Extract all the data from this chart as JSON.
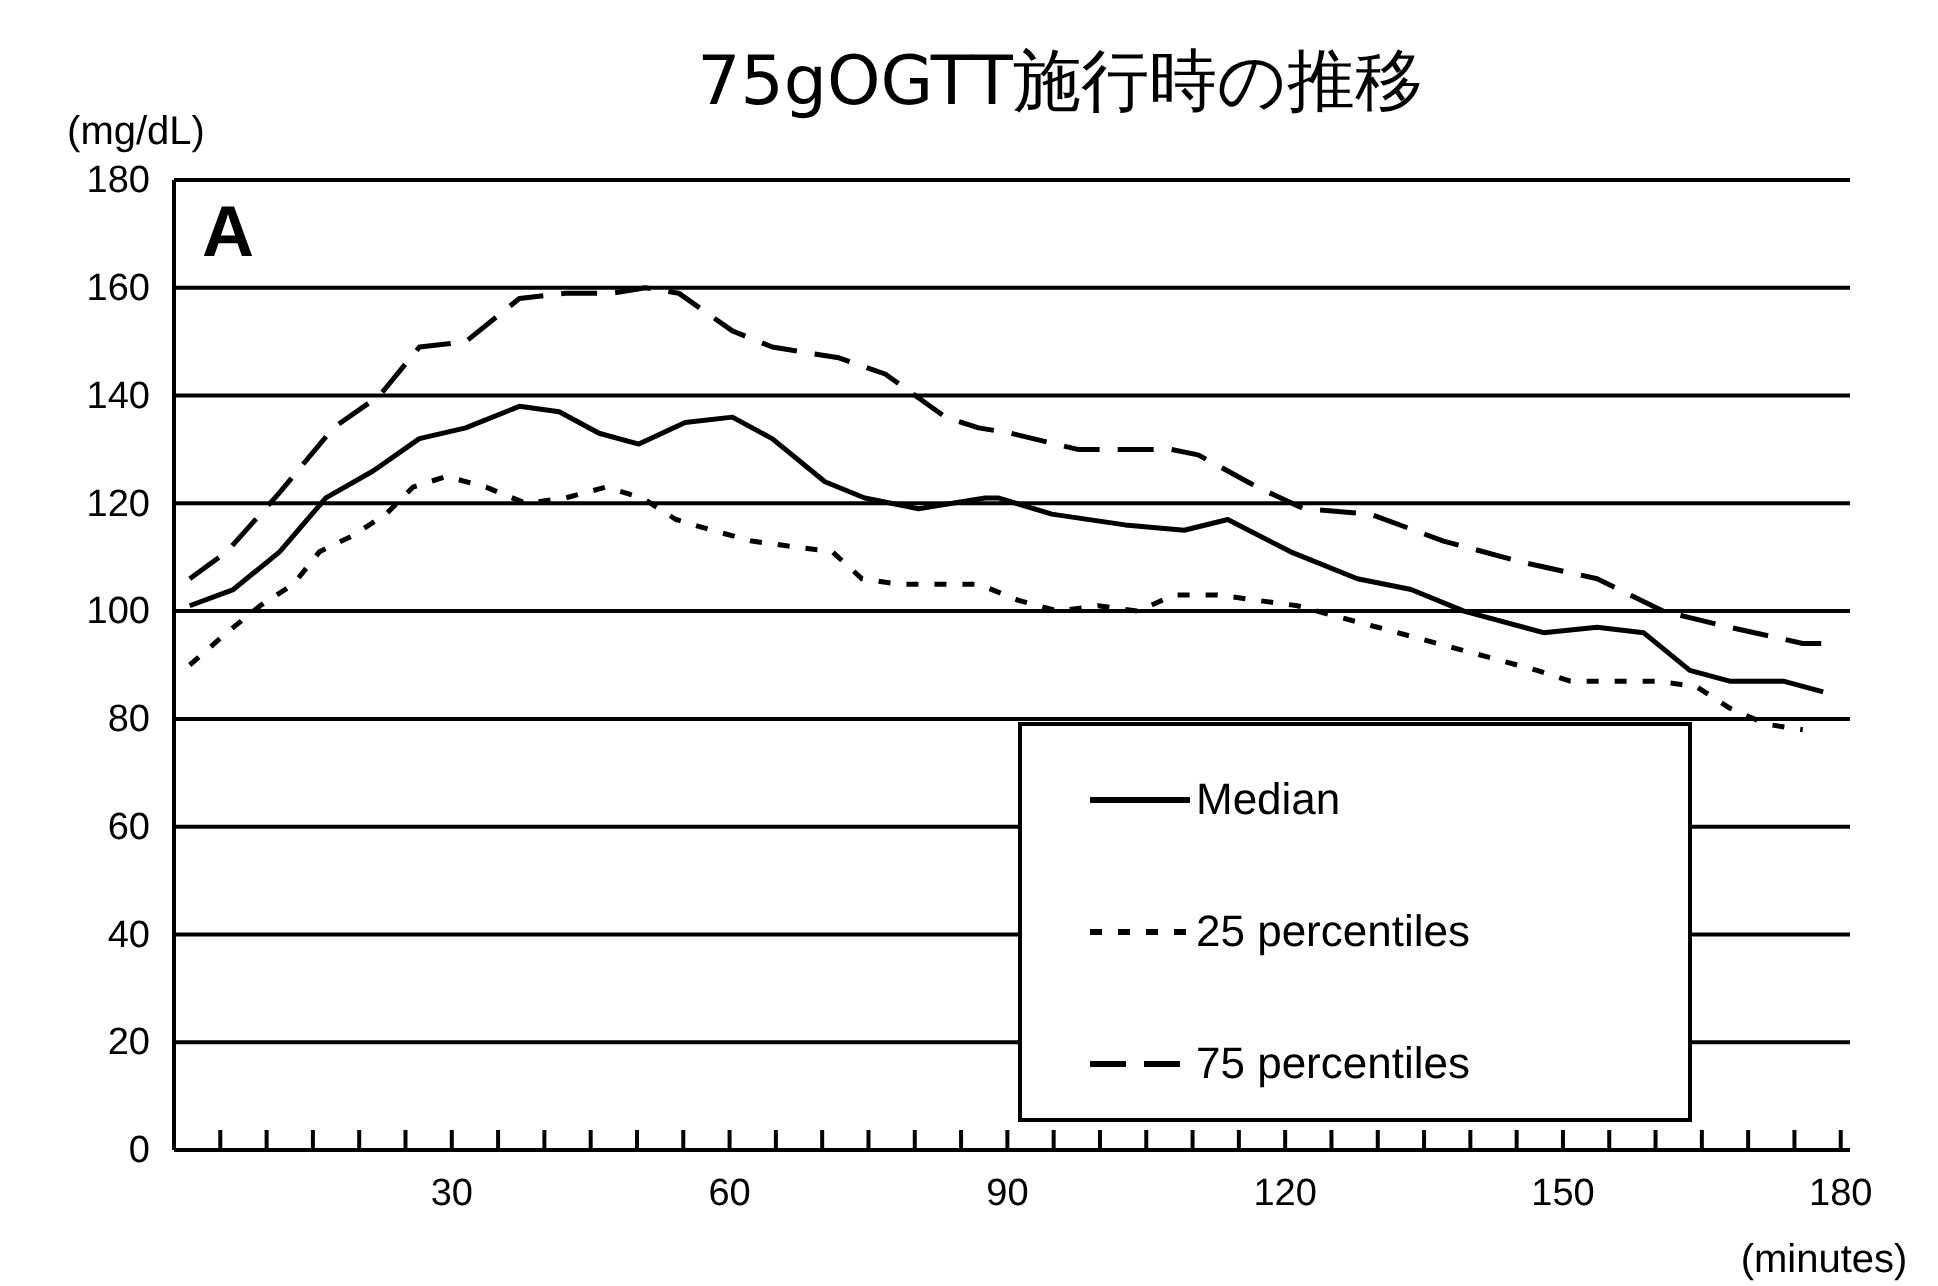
{
  "chart_data": {
    "type": "line",
    "title": "75gOGTT施行時の推移",
    "xlabel": "(minutes)",
    "ylabel": "(mg/dL)",
    "annotations": [
      "A"
    ],
    "xlim": [
      0,
      181
    ],
    "ylim": [
      0,
      180
    ],
    "xticks": [
      {
        "value": 5,
        "label": null
      },
      {
        "value": 10,
        "label": null
      },
      {
        "value": 15,
        "label": null
      },
      {
        "value": 20,
        "label": null
      },
      {
        "value": 25,
        "label": null
      },
      30,
      {
        "value": 35,
        "label": null
      },
      {
        "value": 40,
        "label": null
      },
      {
        "value": 45,
        "label": null
      },
      {
        "value": 50,
        "label": null
      },
      {
        "value": 55,
        "label": null
      },
      60,
      {
        "value": 65,
        "label": null
      },
      {
        "value": 70,
        "label": null
      },
      {
        "value": 75,
        "label": null
      },
      {
        "value": 80,
        "label": null
      },
      {
        "value": 85,
        "label": null
      },
      90,
      {
        "value": 95,
        "label": null
      },
      {
        "value": 100,
        "label": null
      },
      {
        "value": 105,
        "label": null
      },
      {
        "value": 110,
        "label": null
      },
      {
        "value": 115,
        "label": null
      },
      120,
      {
        "value": 125,
        "label": null
      },
      {
        "value": 130,
        "label": null
      },
      {
        "value": 135,
        "label": null
      },
      {
        "value": 140,
        "label": null
      },
      {
        "value": 145,
        "label": null
      },
      150,
      {
        "value": 155,
        "label": null
      },
      {
        "value": 160,
        "label": null
      },
      {
        "value": 165,
        "label": null
      },
      {
        "value": 170,
        "label": null
      },
      {
        "value": 175,
        "label": null
      },
      180
    ],
    "yticks": [
      0,
      20,
      40,
      60,
      80,
      100,
      120,
      140,
      160,
      180
    ],
    "grid": "y",
    "legend": "bottom right",
    "marker": "none",
    "series": [
      {
        "name": "Median",
        "color": "#000000",
        "line_style": "solid",
        "x": [
          1.7,
          6.4,
          11.4,
          16.4,
          21.5,
          26.5,
          31.5,
          37.3,
          41.6,
          45.9,
          50.2,
          55.2,
          60.3,
          64.6,
          70.3,
          74.6,
          80.4,
          87.6,
          89,
          94.8,
          102.7,
          109.1,
          113.8,
          120.6,
          127.8,
          133.6,
          139.3,
          147.9,
          153.7,
          158.7,
          163.7,
          168,
          173.8,
          178.1
        ],
        "values": [
          101,
          104,
          111,
          121,
          126,
          132,
          134,
          138,
          137,
          133,
          131,
          135,
          136,
          132,
          124,
          121,
          119,
          121,
          121,
          118,
          116,
          115,
          117,
          111,
          106,
          104,
          100,
          96,
          97,
          96,
          89,
          87,
          87,
          85
        ]
      },
      {
        "name": "25 percentiles",
        "color": "#000000",
        "line_style": "dotted",
        "x": [
          1.7,
          5.7,
          9.3,
          12.9,
          15.7,
          19.3,
          22.9,
          25.8,
          29.4,
          33.7,
          38,
          42.3,
          46.6,
          50.6,
          54.2,
          58.1,
          62.4,
          66.7,
          71.1,
          74.3,
          78.2,
          86.9,
          91.2,
          95.5,
          99.8,
          104.1,
          108,
          112.7,
          117,
          121.3,
          125.6,
          130,
          134.3,
          138.6,
          142.9,
          147.2,
          150.8,
          155.8,
          160.1,
          164.4,
          168,
          172,
          175.9
        ],
        "values": [
          90,
          96,
          101,
          105,
          111,
          114,
          118,
          123,
          125,
          123,
          120,
          121,
          123,
          121,
          117,
          115,
          113,
          112,
          111,
          106,
          105,
          105,
          102,
          100,
          101,
          100,
          103,
          103,
          102,
          101,
          99,
          97,
          95,
          93,
          91,
          89,
          87,
          87,
          87,
          86,
          82,
          79,
          78
        ]
      },
      {
        "name": "75 percentiles",
        "color": "#000000",
        "line_style": "dashed",
        "x": [
          1.7,
          5.7,
          11.4,
          17.2,
          22.2,
          26.5,
          31.5,
          37.3,
          42.3,
          47.4,
          50.9,
          54.5,
          60.3,
          64.6,
          71.8,
          76.8,
          83.3,
          86.9,
          90.4,
          97.6,
          107.7,
          110.6,
          117,
          122,
          129.2,
          137.1,
          145.8,
          153.7,
          160.8,
          168,
          175.9,
          178.1
        ],
        "values": [
          106,
          111,
          122,
          134,
          140,
          149,
          150,
          158,
          159,
          159,
          160,
          159,
          152,
          149,
          147,
          144,
          136,
          134,
          133,
          130,
          130,
          129,
          123,
          119,
          118,
          113,
          109,
          106,
          100,
          97,
          94,
          94
        ]
      }
    ]
  }
}
